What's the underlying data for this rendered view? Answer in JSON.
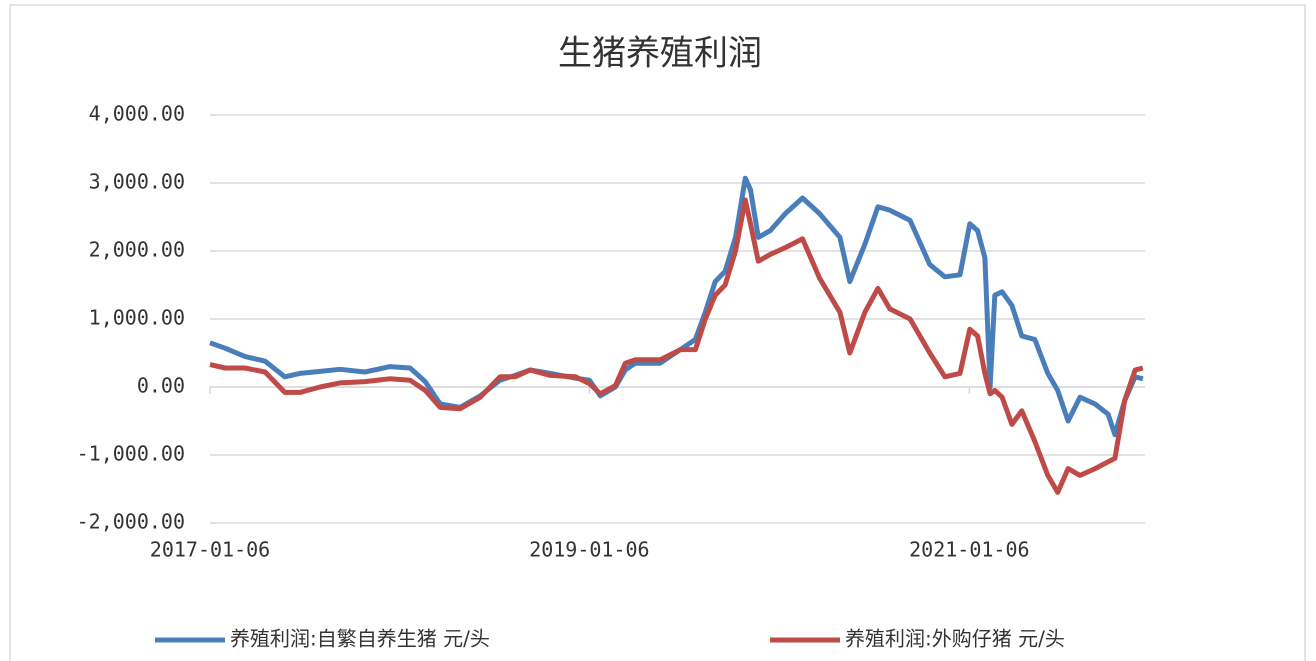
{
  "chart_data": {
    "type": "line",
    "title": "生猪养殖利润",
    "x": [
      "2017-01-06",
      "2017-02-04",
      "2017-03-14",
      "2017-04-22",
      "2017-05-30",
      "2017-06-28",
      "2017-08-06",
      "2017-09-13",
      "2017-10-31",
      "2017-12-18",
      "2018-01-26",
      "2018-02-24",
      "2018-03-25",
      "2018-05-02",
      "2018-06-10",
      "2018-07-18",
      "2018-08-16",
      "2018-09-14",
      "2018-10-22",
      "2018-12-10",
      "2019-01-06",
      "2019-01-27",
      "2019-02-25",
      "2019-03-16",
      "2019-04-04",
      "2019-05-22",
      "2019-06-30",
      "2019-07-29",
      "2019-08-17",
      "2019-09-05",
      "2019-09-24",
      "2019-10-14",
      "2019-11-02",
      "2019-11-12",
      "2019-11-27",
      "2019-12-20",
      "2020-01-18",
      "2020-02-20",
      "2020-03-24",
      "2020-05-02",
      "2020-05-21",
      "2020-06-19",
      "2020-07-14",
      "2020-08-06",
      "2020-09-14",
      "2020-10-22",
      "2020-11-20",
      "2020-12-19",
      "2021-01-07",
      "2021-01-22",
      "2021-02-05",
      "2021-02-15",
      "2021-02-24",
      "2021-03-10",
      "2021-03-29",
      "2021-04-17",
      "2021-05-12",
      "2021-06-06",
      "2021-06-25",
      "2021-07-15",
      "2021-08-07",
      "2021-09-05",
      "2021-09-30",
      "2021-10-13",
      "2021-11-01",
      "2021-11-21",
      "2021-12-06"
    ],
    "series": [
      {
        "name": "养殖利润:自繁自养生猪 元/头",
        "color": "#4a7ebb",
        "values": [
          650,
          570,
          450,
          380,
          150,
          200,
          230,
          260,
          220,
          300,
          280,
          80,
          -250,
          -300,
          -130,
          100,
          170,
          250,
          200,
          130,
          100,
          -130,
          0,
          250,
          350,
          350,
          550,
          700,
          1100,
          1550,
          1700,
          2200,
          3070,
          2900,
          2200,
          2300,
          2550,
          2780,
          2550,
          2200,
          1550,
          2100,
          2650,
          2600,
          2450,
          1800,
          1620,
          1650,
          2400,
          2300,
          1900,
          0,
          1350,
          1400,
          1200,
          750,
          700,
          200,
          -50,
          -500,
          -150,
          -250,
          -400,
          -700,
          -200,
          150,
          120
        ]
      },
      {
        "name": "养殖利润:外购仔猪 元/头",
        "color": "#be4b48",
        "values": [
          330,
          280,
          280,
          220,
          -80,
          -80,
          0,
          60,
          80,
          120,
          100,
          -50,
          -300,
          -320,
          -150,
          150,
          150,
          250,
          170,
          150,
          50,
          -100,
          20,
          350,
          400,
          400,
          550,
          550,
          1000,
          1350,
          1500,
          2000,
          2750,
          2400,
          1850,
          1950,
          2050,
          2180,
          1600,
          1100,
          500,
          1100,
          1450,
          1150,
          1000,
          500,
          150,
          200,
          850,
          750,
          200,
          -100,
          -50,
          -150,
          -550,
          -350,
          -800,
          -1300,
          -1550,
          -1200,
          -1300,
          -1200,
          -1100,
          -1050,
          -200,
          250,
          280
        ]
      }
    ],
    "xlim": [
      "2017-01-06",
      "2021-12-10"
    ],
    "xticks": [
      "2017-01-06",
      "2019-01-06",
      "2021-01-06"
    ],
    "ylim": [
      -2000,
      4000
    ],
    "yticks": [
      {
        "value": -2000,
        "label": "-2,000.00"
      },
      {
        "value": -1000,
        "label": "-1,000.00"
      },
      {
        "value": 0,
        "label": "0.00"
      },
      {
        "value": 1000,
        "label": "1,000.00"
      },
      {
        "value": 2000,
        "label": "2,000.00"
      },
      {
        "value": 3000,
        "label": "3,000.00"
      },
      {
        "value": 4000,
        "label": "4,000.00"
      }
    ],
    "grid": true,
    "legend": "bottom"
  }
}
